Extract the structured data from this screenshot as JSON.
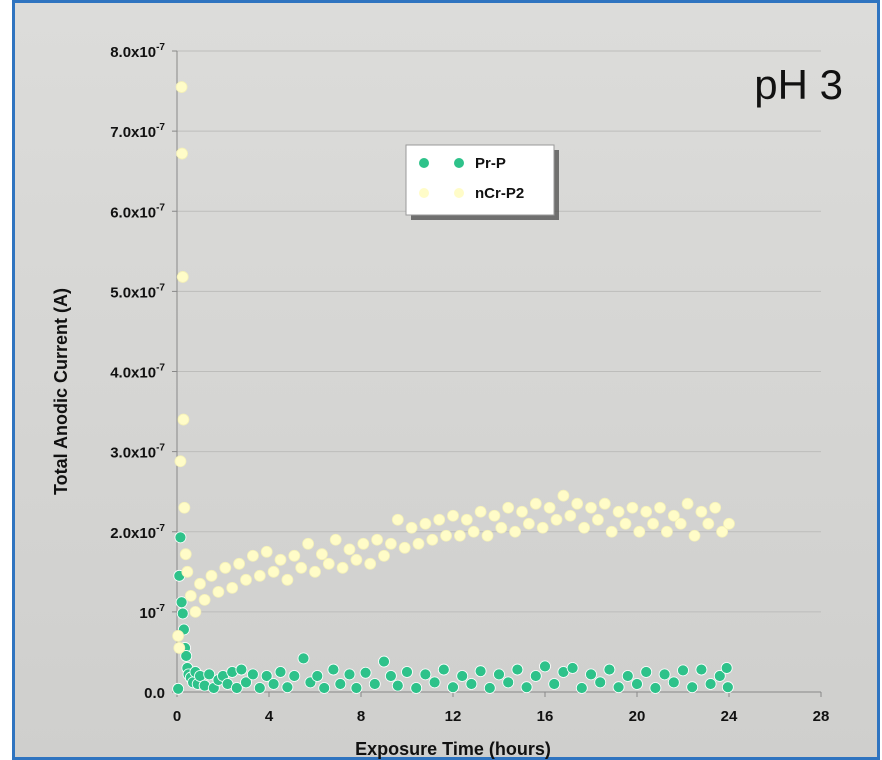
{
  "chart_data": {
    "type": "scatter",
    "annotation": "pH 3",
    "xlabel": "Exposure Time (hours)",
    "ylabel": "Total Anodic Current (A)",
    "xlim": [
      0,
      28
    ],
    "ylim": [
      0,
      8e-07
    ],
    "x_ticks": [
      0,
      4,
      8,
      12,
      16,
      20,
      24,
      28
    ],
    "x_tick_labels": [
      "0",
      "4",
      "8",
      "12",
      "16",
      "20",
      "24",
      "28"
    ],
    "y_ticks": [
      0,
      1e-07,
      2e-07,
      3e-07,
      4e-07,
      5e-07,
      6e-07,
      7e-07,
      8e-07
    ],
    "y_tick_labels": [
      {
        "base": "0.0",
        "exp": ""
      },
      {
        "base": "10",
        "exp": "-7"
      },
      {
        "base": "2.0x10",
        "exp": "-7"
      },
      {
        "base": "3.0x10",
        "exp": "-7"
      },
      {
        "base": "4.0x10",
        "exp": "-7"
      },
      {
        "base": "5.0x10",
        "exp": "-7"
      },
      {
        "base": "6.0x10",
        "exp": "-7"
      },
      {
        "base": "7.0x10",
        "exp": "-7"
      },
      {
        "base": "8.0x10",
        "exp": "-7"
      }
    ],
    "grid": "horizontal",
    "legend_position": "top-center",
    "series": [
      {
        "name": "Pr-P",
        "color": "#2ec28a",
        "points": [
          [
            0.05,
            4e-09
          ],
          [
            0.1,
            1.45e-07
          ],
          [
            0.15,
            1.93e-07
          ],
          [
            0.2,
            1.12e-07
          ],
          [
            0.25,
            9.8e-08
          ],
          [
            0.3,
            7.8e-08
          ],
          [
            0.35,
            5.5e-08
          ],
          [
            0.4,
            4.5e-08
          ],
          [
            0.45,
            3e-08
          ],
          [
            0.5,
            2.2e-08
          ],
          [
            0.6,
            1.8e-08
          ],
          [
            0.7,
            1.2e-08
          ],
          [
            0.8,
            2.5e-08
          ],
          [
            0.9,
            1e-08
          ],
          [
            1.0,
            2e-08
          ],
          [
            1.2,
            8e-09
          ],
          [
            1.4,
            2.2e-08
          ],
          [
            1.6,
            5e-09
          ],
          [
            1.8,
            1.5e-08
          ],
          [
            2.0,
            2e-08
          ],
          [
            2.2,
            1e-08
          ],
          [
            2.4,
            2.5e-08
          ],
          [
            2.6,
            5e-09
          ],
          [
            2.8,
            2.8e-08
          ],
          [
            3.0,
            1.2e-08
          ],
          [
            3.3,
            2.2e-08
          ],
          [
            3.6,
            5e-09
          ],
          [
            3.9,
            2e-08
          ],
          [
            4.2,
            1e-08
          ],
          [
            4.5,
            2.5e-08
          ],
          [
            4.8,
            6e-09
          ],
          [
            5.1,
            2e-08
          ],
          [
            5.5,
            4.2e-08
          ],
          [
            5.8,
            1.2e-08
          ],
          [
            6.1,
            2e-08
          ],
          [
            6.4,
            5e-09
          ],
          [
            6.8,
            2.8e-08
          ],
          [
            7.1,
            1e-08
          ],
          [
            7.5,
            2.2e-08
          ],
          [
            7.8,
            5e-09
          ],
          [
            8.2,
            2.4e-08
          ],
          [
            8.6,
            1e-08
          ],
          [
            9.0,
            3.8e-08
          ],
          [
            9.3,
            2e-08
          ],
          [
            9.6,
            8e-09
          ],
          [
            10.0,
            2.5e-08
          ],
          [
            10.4,
            5e-09
          ],
          [
            10.8,
            2.2e-08
          ],
          [
            11.2,
            1.2e-08
          ],
          [
            11.6,
            2.8e-08
          ],
          [
            12.0,
            6e-09
          ],
          [
            12.4,
            2e-08
          ],
          [
            12.8,
            1e-08
          ],
          [
            13.2,
            2.6e-08
          ],
          [
            13.6,
            5e-09
          ],
          [
            14.0,
            2.2e-08
          ],
          [
            14.4,
            1.2e-08
          ],
          [
            14.8,
            2.8e-08
          ],
          [
            15.2,
            6e-09
          ],
          [
            15.6,
            2e-08
          ],
          [
            16.0,
            3.2e-08
          ],
          [
            16.4,
            1e-08
          ],
          [
            16.8,
            2.5e-08
          ],
          [
            17.2,
            3e-08
          ],
          [
            17.6,
            5e-09
          ],
          [
            18.0,
            2.2e-08
          ],
          [
            18.4,
            1.2e-08
          ],
          [
            18.8,
            2.8e-08
          ],
          [
            19.2,
            6e-09
          ],
          [
            19.6,
            2e-08
          ],
          [
            20.0,
            1e-08
          ],
          [
            20.4,
            2.5e-08
          ],
          [
            20.8,
            5e-09
          ],
          [
            21.2,
            2.2e-08
          ],
          [
            21.6,
            1.2e-08
          ],
          [
            22.0,
            2.7e-08
          ],
          [
            22.4,
            6e-09
          ],
          [
            22.8,
            2.8e-08
          ],
          [
            23.2,
            1e-08
          ],
          [
            23.6,
            2e-08
          ],
          [
            23.9,
            3e-08
          ],
          [
            23.95,
            6e-09
          ]
        ]
      },
      {
        "name": "nCr-P2",
        "color": "#fffcc8",
        "points": [
          [
            0.05,
            7e-08
          ],
          [
            0.1,
            5.5e-08
          ],
          [
            0.15,
            2.88e-07
          ],
          [
            0.2,
            7.55e-07
          ],
          [
            0.22,
            6.72e-07
          ],
          [
            0.25,
            5.18e-07
          ],
          [
            0.28,
            3.4e-07
          ],
          [
            0.32,
            2.3e-07
          ],
          [
            0.38,
            1.72e-07
          ],
          [
            0.45,
            1.5e-07
          ],
          [
            0.6,
            1.2e-07
          ],
          [
            0.8,
            1e-07
          ],
          [
            1.0,
            1.35e-07
          ],
          [
            1.2,
            1.15e-07
          ],
          [
            1.5,
            1.45e-07
          ],
          [
            1.8,
            1.25e-07
          ],
          [
            2.1,
            1.55e-07
          ],
          [
            2.4,
            1.3e-07
          ],
          [
            2.7,
            1.6e-07
          ],
          [
            3.0,
            1.4e-07
          ],
          [
            3.3,
            1.7e-07
          ],
          [
            3.6,
            1.45e-07
          ],
          [
            3.9,
            1.75e-07
          ],
          [
            4.2,
            1.5e-07
          ],
          [
            4.5,
            1.65e-07
          ],
          [
            4.8,
            1.4e-07
          ],
          [
            5.1,
            1.7e-07
          ],
          [
            5.4,
            1.55e-07
          ],
          [
            5.7,
            1.85e-07
          ],
          [
            6.0,
            1.5e-07
          ],
          [
            6.3,
            1.72e-07
          ],
          [
            6.6,
            1.6e-07
          ],
          [
            6.9,
            1.9e-07
          ],
          [
            7.2,
            1.55e-07
          ],
          [
            7.5,
            1.78e-07
          ],
          [
            7.8,
            1.65e-07
          ],
          [
            8.1,
            1.85e-07
          ],
          [
            8.4,
            1.6e-07
          ],
          [
            8.7,
            1.9e-07
          ],
          [
            9.0,
            1.7e-07
          ],
          [
            9.3,
            1.85e-07
          ],
          [
            9.6,
            2.15e-07
          ],
          [
            9.9,
            1.8e-07
          ],
          [
            10.2,
            2.05e-07
          ],
          [
            10.5,
            1.85e-07
          ],
          [
            10.8,
            2.1e-07
          ],
          [
            11.1,
            1.9e-07
          ],
          [
            11.4,
            2.15e-07
          ],
          [
            11.7,
            1.95e-07
          ],
          [
            12.0,
            2.2e-07
          ],
          [
            12.3,
            1.95e-07
          ],
          [
            12.6,
            2.15e-07
          ],
          [
            12.9,
            2e-07
          ],
          [
            13.2,
            2.25e-07
          ],
          [
            13.5,
            1.95e-07
          ],
          [
            13.8,
            2.2e-07
          ],
          [
            14.1,
            2.05e-07
          ],
          [
            14.4,
            2.3e-07
          ],
          [
            14.7,
            2e-07
          ],
          [
            15.0,
            2.25e-07
          ],
          [
            15.3,
            2.1e-07
          ],
          [
            15.6,
            2.35e-07
          ],
          [
            15.9,
            2.05e-07
          ],
          [
            16.2,
            2.3e-07
          ],
          [
            16.5,
            2.15e-07
          ],
          [
            16.8,
            2.45e-07
          ],
          [
            17.1,
            2.2e-07
          ],
          [
            17.4,
            2.35e-07
          ],
          [
            17.7,
            2.05e-07
          ],
          [
            18.0,
            2.3e-07
          ],
          [
            18.3,
            2.15e-07
          ],
          [
            18.6,
            2.35e-07
          ],
          [
            18.9,
            2e-07
          ],
          [
            19.2,
            2.25e-07
          ],
          [
            19.5,
            2.1e-07
          ],
          [
            19.8,
            2.3e-07
          ],
          [
            20.1,
            2e-07
          ],
          [
            20.4,
            2.25e-07
          ],
          [
            20.7,
            2.1e-07
          ],
          [
            21.0,
            2.3e-07
          ],
          [
            21.3,
            2e-07
          ],
          [
            21.6,
            2.2e-07
          ],
          [
            21.9,
            2.1e-07
          ],
          [
            22.2,
            2.35e-07
          ],
          [
            22.5,
            1.95e-07
          ],
          [
            22.8,
            2.25e-07
          ],
          [
            23.1,
            2.1e-07
          ],
          [
            23.4,
            2.3e-07
          ],
          [
            23.7,
            2e-07
          ],
          [
            24.0,
            2.1e-07
          ]
        ]
      }
    ]
  }
}
